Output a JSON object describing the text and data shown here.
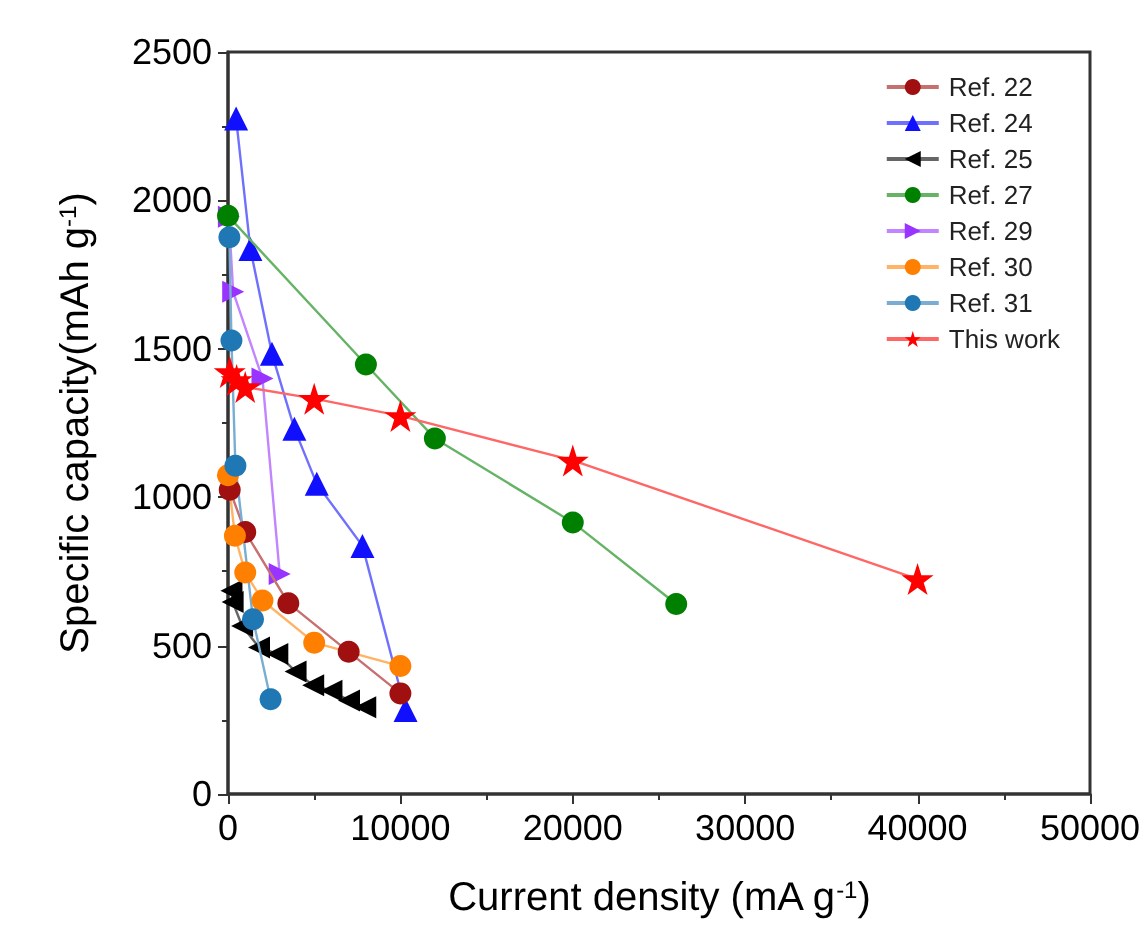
{
  "chart_data": {
    "type": "line",
    "xlabel": "Current density (mA g$^{-1}$)",
    "ylabel": "Specific capacity(mAh g$^{-1}$)",
    "xlim": [
      0,
      50000
    ],
    "xticks": [
      0,
      10000,
      20000,
      30000,
      40000,
      50000
    ],
    "ylim": [
      0,
      2500
    ],
    "yticks": [
      0,
      500,
      1000,
      1500,
      2000,
      2500
    ],
    "grid": false,
    "legend": "top right",
    "series": [
      {
        "name": "Ref. 22",
        "color": "#a01010",
        "marker": "circle",
        "x": [
          100,
          1000,
          3500,
          7000,
          10000
        ],
        "values": [
          1025,
          883,
          643,
          479,
          339
        ]
      },
      {
        "name": "Ref. 24",
        "color": "#1010ff",
        "marker": "triangle",
        "x": [
          470,
          1300,
          2550,
          3850,
          5150,
          7800,
          10300
        ],
        "values": [
          2276,
          1836,
          1483,
          1231,
          1045,
          836,
          283
        ]
      },
      {
        "name": "Ref. 25",
        "color": "#000000",
        "marker": "triangle-left",
        "x": [
          200,
          270,
          820,
          1800,
          2860,
          3920,
          4940,
          6000,
          7020,
          7960
        ],
        "values": [
          685,
          647,
          566,
          494,
          472,
          413,
          366,
          348,
          315,
          292
        ]
      },
      {
        "name": "Ref. 27",
        "color": "#008000",
        "marker": "circle",
        "x": [
          0,
          8000,
          12000,
          20000,
          26000
        ],
        "values": [
          1948,
          1447,
          1198,
          915,
          640
        ]
      },
      {
        "name": "Ref. 29",
        "color": "#9933ff",
        "marker": "triangle-right",
        "x": [
          50,
          300,
          2000,
          3000
        ],
        "values": [
          1945,
          1692,
          1400,
          741
        ]
      },
      {
        "name": "Ref. 30",
        "color": "#ff8000",
        "marker": "circle",
        "x": [
          0,
          400,
          1000,
          2000,
          5000,
          10000
        ],
        "values": [
          1074,
          870,
          746,
          652,
          510,
          431
        ]
      },
      {
        "name": "Ref. 31",
        "color": "#1f77b4",
        "marker": "circle",
        "x": [
          80,
          200,
          430,
          1450,
          2470
        ],
        "values": [
          1876,
          1528,
          1106,
          589,
          319
        ]
      },
      {
        "name": "This work",
        "color": "#ff0000",
        "marker": "star",
        "x": [
          100,
          500,
          1000,
          5000,
          10000,
          20000,
          40000
        ],
        "values": [
          1422,
          1395,
          1371,
          1332,
          1274,
          1124,
          724
        ]
      }
    ]
  }
}
